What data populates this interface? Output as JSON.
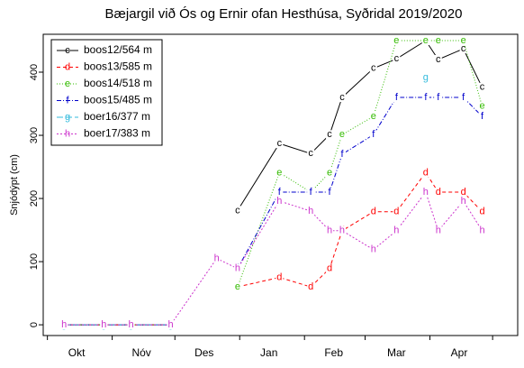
{
  "chart_data": {
    "type": "line",
    "title": "Bæjargil við Ós og Ernir ofan Hesthúsa, Syðridal 2019/2020",
    "y_label": "Snjódýpt (cm)",
    "x": [
      8,
      27,
      40,
      59,
      81,
      91,
      111,
      126,
      135,
      141,
      156,
      167,
      181,
      187,
      199,
      208
    ],
    "xlim": [
      -2,
      225
    ],
    "xticks": [
      {
        "value": 14,
        "label": "Okt"
      },
      {
        "value": 45,
        "label": "Nóv"
      },
      {
        "value": 75,
        "label": "Des"
      },
      {
        "value": 106,
        "label": "Jan"
      },
      {
        "value": 137,
        "label": "Feb"
      },
      {
        "value": 167,
        "label": "Mar"
      },
      {
        "value": 197,
        "label": "Apr"
      }
    ],
    "xminorticks": [
      0,
      31,
      61,
      92,
      123,
      152,
      183,
      213
    ],
    "ylim": [
      -17,
      460
    ],
    "yticks": [
      0,
      100,
      200,
      300,
      400
    ],
    "legend": "top-left",
    "series": [
      {
        "name": "boos12/564 m",
        "color": "#000000",
        "marker": "c",
        "dash": "",
        "values": [
          0,
          0,
          0,
          0,
          null,
          181,
          287,
          271,
          301,
          360,
          406,
          421,
          450,
          420,
          437,
          376
        ]
      },
      {
        "name": "boos13/585 m",
        "color": "#ff0000",
        "marker": "d",
        "dash": "4,3",
        "values": [
          0,
          0,
          0,
          0,
          null,
          60,
          75,
          60,
          89,
          149,
          179,
          179,
          241,
          210,
          210,
          179
        ]
      },
      {
        "name": "boos14/518 m",
        "color": "#33bb00",
        "marker": "e",
        "dash": "1,2",
        "values": [
          0,
          0,
          0,
          0,
          null,
          60,
          241,
          210,
          241,
          301,
          330,
          450,
          450,
          450,
          450,
          346
        ]
      },
      {
        "name": "boos15/485 m",
        "color": "#0000cc",
        "marker": "f",
        "dash": "5,2,1,2",
        "values": [
          0,
          0,
          0,
          0,
          null,
          89,
          210,
          210,
          210,
          270,
          301,
          360,
          360,
          360,
          360,
          330
        ]
      },
      {
        "name": "boer16/377 m",
        "color": "#33bbdd",
        "marker": "g",
        "dash": "7,3",
        "values": [
          0,
          0,
          0,
          0,
          null,
          null,
          null,
          null,
          null,
          null,
          null,
          null,
          391,
          null,
          null,
          null
        ]
      },
      {
        "name": "boer17/383 m",
        "color": "#cc33cc",
        "marker": "h",
        "dash": "2,2",
        "values": [
          0,
          0,
          0,
          0,
          105,
          89,
          196,
          180,
          149,
          149,
          119,
          149,
          210,
          149,
          196,
          149
        ]
      }
    ]
  }
}
